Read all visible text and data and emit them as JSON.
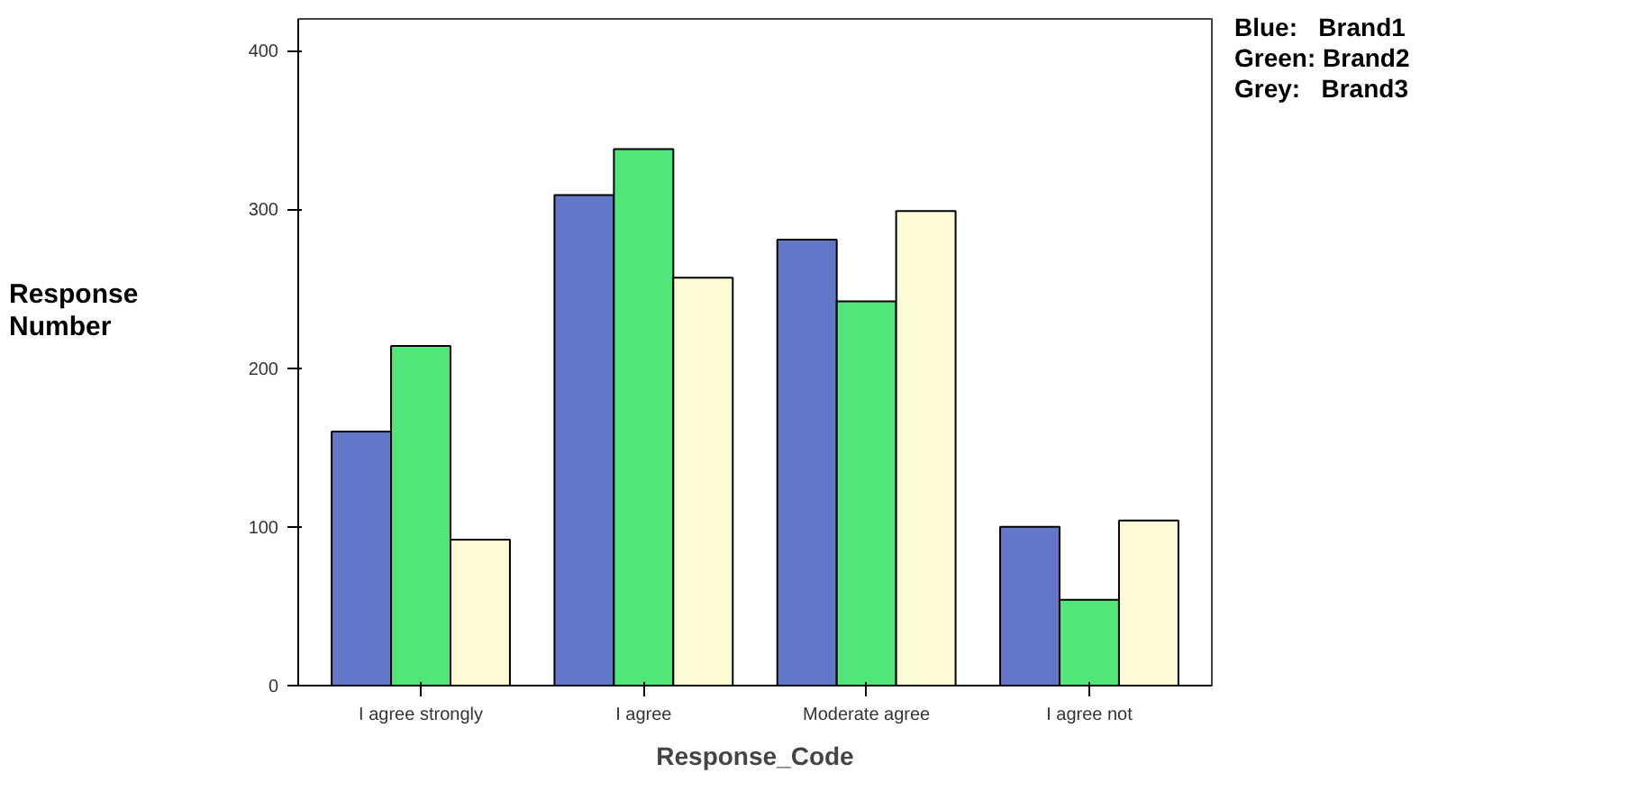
{
  "chart_data": {
    "type": "bar",
    "xlabel": "Response_Code",
    "ylabel": "Response Number",
    "categories": [
      "I agree strongly",
      "I agree",
      "Moderate agree",
      "I agree not"
    ],
    "series": [
      {
        "color": "#6277c8",
        "values": [
          160,
          309,
          281,
          100
        ]
      },
      {
        "color": "#52e57a",
        "values": [
          214,
          338,
          242,
          54
        ]
      },
      {
        "color": "#fdfbd6",
        "values": [
          92,
          257,
          299,
          104
        ]
      }
    ],
    "ylim": [
      0,
      420
    ],
    "yticks": [
      0,
      100,
      200,
      300,
      400
    ],
    "grid": false,
    "annotations": [
      "Blue:   Brand1",
      "Green: Brand2",
      "Grey:   Brand3"
    ]
  }
}
